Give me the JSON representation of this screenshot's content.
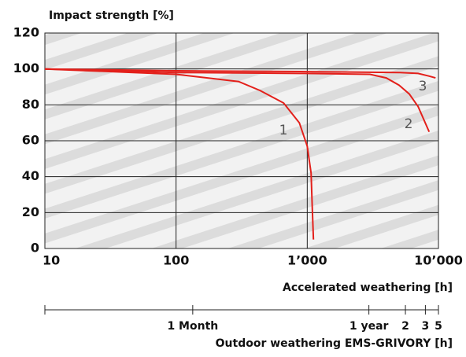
{
  "chart_data": {
    "type": "line",
    "y_label": "Impact strength [%]",
    "x_label": "Accelerated weathering [h]",
    "x2_label": "Outdoor weathering EMS-GRIVORY [h]",
    "x_log": true,
    "xlim": [
      10,
      10000
    ],
    "xticks": [
      10,
      100,
      {
        "value": 1000,
        "label": "1’000"
      },
      {
        "value": 10000,
        "label": "10’000"
      }
    ],
    "ylim": [
      0,
      120
    ],
    "yticks": [
      0,
      20,
      40,
      60,
      80,
      100,
      120
    ],
    "grid": true,
    "x2lim": [
      10,
      10000
    ],
    "x2ticks": [
      {
        "value": 134,
        "label": "1 Month"
      },
      {
        "value": 2950,
        "label": "1 year"
      },
      {
        "value": 5600,
        "label": "2"
      },
      {
        "value": 7950,
        "label": "3"
      },
      {
        "value": 10000,
        "label": "5"
      }
    ],
    "series": [
      {
        "name": "1",
        "color": "#e3201b",
        "x": [
          10,
          100,
          300,
          437,
          660,
          870,
          1000,
          1070,
          1090,
          1115
        ],
        "values": [
          100,
          97,
          93,
          88,
          81,
          70,
          57,
          42,
          24,
          5
        ]
      },
      {
        "name": "2",
        "color": "#e3201b",
        "x": [
          10,
          100,
          1000,
          3000,
          4000,
          5000,
          6000,
          7000,
          8500
        ],
        "values": [
          100,
          98,
          97.5,
          97,
          95,
          91,
          86,
          79,
          65
        ]
      },
      {
        "name": "3",
        "color": "#e3201b",
        "x": [
          10,
          100,
          1000,
          5000,
          7000,
          8500,
          9500
        ],
        "values": [
          100,
          99,
          98.5,
          98,
          97.5,
          96,
          95
        ]
      }
    ]
  }
}
